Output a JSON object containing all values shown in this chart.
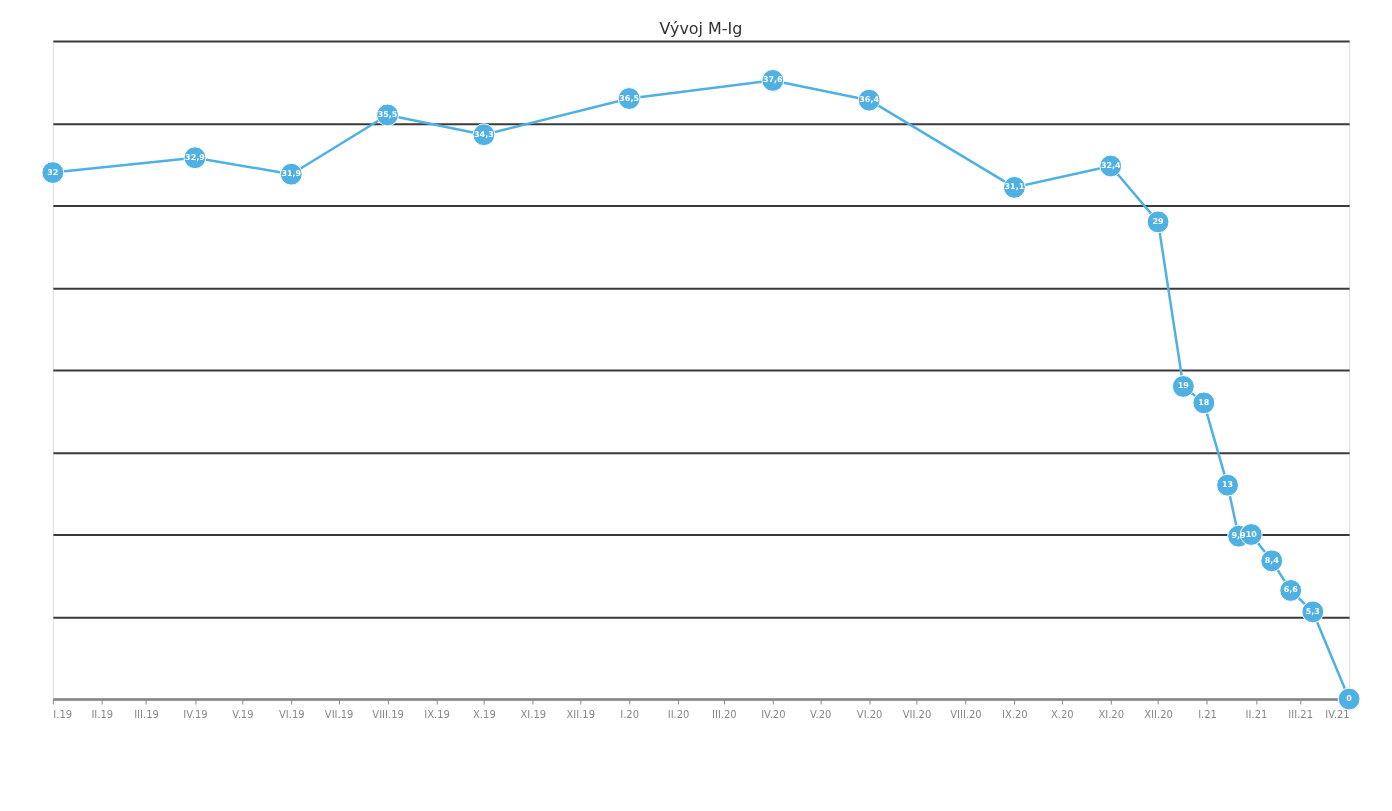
{
  "chart_data": {
    "type": "line",
    "title": "Vývoj M-Ig",
    "x": [
      "2019-01-01",
      "2019-04-01",
      "2019-06-01",
      "2019-08-01",
      "2019-10-01",
      "2020-01-01",
      "2020-04-01",
      "2020-06-01",
      "2020-09-01",
      "2020-11-01",
      "2020-12-01",
      "2020-12-17",
      "2020-12-30",
      "2021-01-14",
      "2021-01-21",
      "2021-01-29",
      "2021-02-11",
      "2021-02-23",
      "2021-03-09",
      "2021-04-01"
    ],
    "series": [
      {
        "color": "#4fb0e3",
        "values": [
          32,
          32.9,
          31.9,
          35.5,
          34.3,
          36.5,
          37.6,
          36.4,
          31.1,
          32.4,
          29,
          19,
          18,
          13,
          9.9,
          10,
          8.4,
          6.6,
          5.3,
          0
        ],
        "value_labels": [
          "32",
          "32,9",
          "31,9",
          "35,5",
          "34,3",
          "36,5",
          "37,6",
          "36,4",
          "31,1",
          "32,4",
          "29",
          "19",
          "18",
          "13",
          "9,9",
          "10",
          "8,4",
          "6,6",
          "5,3",
          "0"
        ]
      }
    ],
    "xlim": [
      "2019-01-01",
      "2021-04-01"
    ],
    "xticks": [
      {
        "value": "2019-01-01",
        "label": "I.19"
      },
      {
        "value": "2019-02-01",
        "label": "II.19"
      },
      {
        "value": "2019-03-01",
        "label": "III.19"
      },
      {
        "value": "2019-04-01",
        "label": "IV.19"
      },
      {
        "value": "2019-05-01",
        "label": "V.19"
      },
      {
        "value": "2019-06-01",
        "label": "VI.19"
      },
      {
        "value": "2019-07-01",
        "label": "VII.19"
      },
      {
        "value": "2019-08-01",
        "label": "VIII.19"
      },
      {
        "value": "2019-09-01",
        "label": "IX.19"
      },
      {
        "value": "2019-10-01",
        "label": "X.19"
      },
      {
        "value": "2019-11-01",
        "label": "XI.19"
      },
      {
        "value": "2019-12-01",
        "label": "XII.19"
      },
      {
        "value": "2020-01-01",
        "label": "I.20"
      },
      {
        "value": "2020-02-01",
        "label": "II.20"
      },
      {
        "value": "2020-03-01",
        "label": "III.20"
      },
      {
        "value": "2020-04-01",
        "label": "IV.20"
      },
      {
        "value": "2020-05-01",
        "label": "V.20"
      },
      {
        "value": "2020-06-01",
        "label": "VI.20"
      },
      {
        "value": "2020-07-01",
        "label": "VII.20"
      },
      {
        "value": "2020-08-01",
        "label": "VIII.20"
      },
      {
        "value": "2020-09-01",
        "label": "IX.20"
      },
      {
        "value": "2020-10-01",
        "label": "X.20"
      },
      {
        "value": "2020-11-01",
        "label": "XI.20"
      },
      {
        "value": "2020-12-01",
        "label": "XII.20"
      },
      {
        "value": "2021-01-01",
        "label": "I.21"
      },
      {
        "value": "2021-02-01",
        "label": "II.21"
      },
      {
        "value": "2021-03-01",
        "label": "III.21"
      },
      {
        "value": "2021-04-01",
        "label": "IV.21"
      }
    ],
    "ylim": [
      0,
      40
    ],
    "yticks": [
      {
        "value": 0,
        "label": null
      },
      {
        "value": 5,
        "label": null
      },
      {
        "value": 10,
        "label": null
      },
      {
        "value": 15,
        "label": null
      },
      {
        "value": 20,
        "label": null
      },
      {
        "value": 25,
        "label": null
      },
      {
        "value": 30,
        "label": null
      },
      {
        "value": 35,
        "label": null
      },
      {
        "value": 40,
        "label": null
      }
    ],
    "grid": "y",
    "tick_labels": "x",
    "marker": "circle",
    "line_style": "solid",
    "legend": false
  }
}
